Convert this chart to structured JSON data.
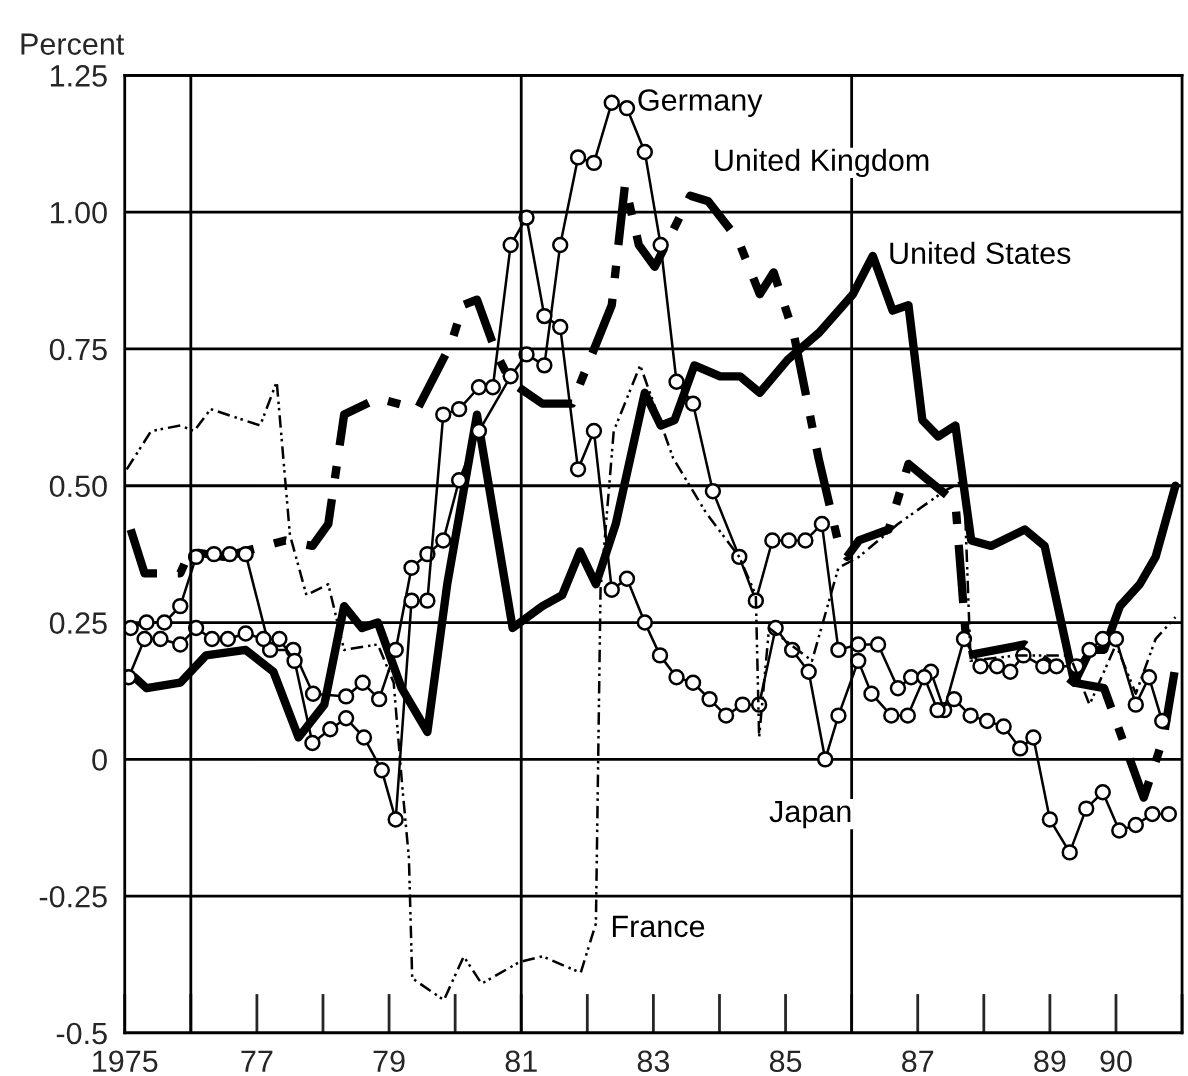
{
  "chart_data": {
    "type": "line",
    "ylabel": "Percent",
    "xlim": [
      1975,
      1991
    ],
    "ylim": [
      -0.5,
      1.25
    ],
    "xticks": [
      1975,
      {
        "value": 1976,
        "label": null
      },
      {
        "value": 1977,
        "label": "77"
      },
      {
        "value": 1979,
        "label": "79"
      },
      {
        "value": 1981,
        "label": "81"
      },
      {
        "value": 1983,
        "label": "83"
      },
      {
        "value": 1985,
        "label": "85"
      },
      {
        "value": 1986,
        "label": null
      },
      {
        "value": 1987,
        "label": "87"
      },
      {
        "value": 1989,
        "label": "89"
      },
      {
        "value": 1990,
        "label": "90"
      }
    ],
    "yticks": [
      -0.5,
      -0.25,
      0,
      0.25,
      {
        "value": 0.5,
        "label": "0.50"
      },
      0.75,
      {
        "value": 1.0,
        "label": "1.00"
      },
      1.25
    ],
    "grid": "y",
    "ref_lines": [
      {
        "axis": "x",
        "value": 1976,
        "color": "#000000"
      },
      {
        "axis": "x",
        "value": 1981,
        "color": "#000000"
      },
      {
        "axis": "x",
        "value": 1986,
        "color": "#000000"
      }
    ],
    "series": [
      {
        "name": "United States",
        "color": "#000000",
        "line_style": "solid",
        "marker": "none",
        "x": [
          1975.15,
          1975.33,
          1975.84,
          1976.23,
          1976.83,
          1977.25,
          1977.63,
          1978.02,
          1978.32,
          1978.59,
          1978.83,
          1979.19,
          1979.58,
          1979.88,
          1980.33,
          1980.87,
          1981.32,
          1981.62,
          1981.89,
          1982.13,
          1982.43,
          1982.87,
          1983.11,
          1983.32,
          1983.62,
          1984.01,
          1984.31,
          1984.61,
          1985.03,
          1985.51,
          1986.02,
          1986.32,
          1986.62,
          1986.86,
          1987.07,
          1987.31,
          1987.57,
          1987.81,
          1988.11,
          1988.62,
          1988.92,
          1989.37,
          1989.61,
          1989.82,
          1990.06,
          1990.36,
          1990.6,
          1990.9
        ],
        "values": [
          0.15,
          0.13,
          0.14,
          0.19,
          0.2,
          0.16,
          0.04,
          0.1,
          0.28,
          0.24,
          0.25,
          0.13,
          0.05,
          0.32,
          0.63,
          0.24,
          0.28,
          0.3,
          0.38,
          0.32,
          0.43,
          0.67,
          0.61,
          0.62,
          0.72,
          0.7,
          0.7,
          0.67,
          0.73,
          0.78,
          0.85,
          0.92,
          0.82,
          0.83,
          0.62,
          0.59,
          0.61,
          0.4,
          0.39,
          0.42,
          0.39,
          0.14,
          0.2,
          0.2,
          0.28,
          0.32,
          0.37,
          0.5
        ]
      },
      {
        "name": "United Kingdom",
        "color": "#000000",
        "line_style": "dashed",
        "marker": "none",
        "x": [
          1975.09,
          1975.3,
          1975.84,
          1975.99,
          1976.5,
          1977.43,
          1977.84,
          1978.08,
          1978.32,
          1978.83,
          1979.43,
          1979.94,
          1980.12,
          1980.33,
          1980.63,
          1980.84,
          1981.32,
          1981.77,
          1982.37,
          1982.57,
          1982.78,
          1983.02,
          1983.56,
          1983.83,
          1984.28,
          1984.61,
          1984.82,
          1985.12,
          1985.5,
          1985.81,
          1985.93,
          1986.11,
          1986.56,
          1986.86,
          1987.16,
          1987.57,
          1987.75,
          1988.62,
          1989.37,
          1989.82,
          1990.42,
          1990.72,
          1990.9
        ],
        "values": [
          0.42,
          0.34,
          0.34,
          0.38,
          0.37,
          0.4,
          0.39,
          0.43,
          0.63,
          0.66,
          0.64,
          0.76,
          0.83,
          0.84,
          0.74,
          0.69,
          0.65,
          0.65,
          0.83,
          1.05,
          0.94,
          0.9,
          1.03,
          1.02,
          0.95,
          0.85,
          0.89,
          0.78,
          0.55,
          0.39,
          0.37,
          0.4,
          0.42,
          0.54,
          0.51,
          0.47,
          0.19,
          0.21,
          0.14,
          0.13,
          -0.07,
          0.04,
          0.17
        ]
      },
      {
        "name": "Germany",
        "color": "#000000",
        "line_style": "solid",
        "marker": "circle",
        "x": [
          1975.09,
          1975.33,
          1975.6,
          1975.84,
          1976.08,
          1976.35,
          1976.59,
          1976.83,
          1977.2,
          1977.55,
          1977.85,
          1978.35,
          1978.6,
          1978.85,
          1979.1,
          1979.34,
          1979.58,
          1979.82,
          1980.06,
          1980.36,
          1980.84,
          1981.08,
          1981.35,
          1981.59,
          1981.86,
          1982.1,
          1982.37,
          1982.6,
          1982.87,
          1983.11,
          1983.35,
          1983.6,
          1983.9,
          1984.3,
          1984.55,
          1984.8,
          1985.05,
          1985.3,
          1985.55,
          1985.8,
          1986.1,
          1986.4,
          1986.7,
          1986.9,
          1987.2,
          1987.4,
          1987.7,
          1987.95,
          1988.2,
          1988.4,
          1988.6,
          1988.9,
          1989.1,
          1989.4,
          1989.6,
          1989.8,
          1990.0,
          1990.3,
          1990.5,
          1990.7
        ],
        "values": [
          0.24,
          0.25,
          0.25,
          0.28,
          0.37,
          0.375,
          0.375,
          0.375,
          0.2,
          0.2,
          0.12,
          0.115,
          0.14,
          0.11,
          0.2,
          0.35,
          0.375,
          0.4,
          0.51,
          0.6,
          0.7,
          0.74,
          0.72,
          0.94,
          1.1,
          1.09,
          1.2,
          1.19,
          1.11,
          0.94,
          0.69,
          0.65,
          0.49,
          0.37,
          0.29,
          0.4,
          0.4,
          0.4,
          0.43,
          0.2,
          0.21,
          0.21,
          0.13,
          0.15,
          0.16,
          0.09,
          0.22,
          0.17,
          0.17,
          0.16,
          0.19,
          0.17,
          0.17,
          0.17,
          0.2,
          0.22,
          0.22,
          0.1,
          0.15,
          0.07
        ]
      },
      {
        "name": "Japan",
        "color": "#000000",
        "line_style": "solid",
        "marker": "circle",
        "x": [
          1975.06,
          1975.3,
          1975.54,
          1975.84,
          1976.08,
          1976.32,
          1976.56,
          1976.83,
          1977.1,
          1977.34,
          1977.57,
          1977.84,
          1978.11,
          1978.35,
          1978.62,
          1978.89,
          1979.1,
          1979.34,
          1979.58,
          1979.82,
          1980.06,
          1980.36,
          1980.57,
          1980.84,
          1981.08,
          1981.35,
          1981.59,
          1981.86,
          1982.1,
          1982.37,
          1982.6,
          1982.87,
          1983.1,
          1983.35,
          1983.6,
          1983.85,
          1984.1,
          1984.35,
          1984.6,
          1984.85,
          1985.1,
          1985.35,
          1985.6,
          1985.8,
          1986.1,
          1986.3,
          1986.6,
          1986.85,
          1987.1,
          1987.3,
          1987.55,
          1987.8,
          1988.05,
          1988.3,
          1988.55,
          1988.75,
          1989.0,
          1989.3,
          1989.55,
          1989.8,
          1990.05,
          1990.3,
          1990.55,
          1990.8
        ],
        "values": [
          0.15,
          0.22,
          0.22,
          0.21,
          0.24,
          0.22,
          0.22,
          0.23,
          0.22,
          0.22,
          0.18,
          0.03,
          0.055,
          0.075,
          0.04,
          -0.02,
          -0.11,
          0.29,
          0.29,
          0.63,
          0.64,
          0.68,
          0.68,
          0.94,
          0.99,
          0.81,
          0.79,
          0.53,
          0.6,
          0.31,
          0.33,
          0.25,
          0.19,
          0.15,
          0.14,
          0.11,
          0.08,
          0.1,
          0.1,
          0.24,
          0.2,
          0.16,
          0.0,
          0.08,
          0.18,
          0.12,
          0.08,
          0.08,
          0.15,
          0.09,
          0.11,
          0.08,
          0.07,
          0.06,
          0.02,
          0.04,
          -0.11,
          -0.17,
          -0.09,
          -0.06,
          -0.13,
          -0.12,
          -0.1,
          -0.1
        ]
      },
      {
        "name": "France",
        "color": "#000000",
        "line_style": "dotted",
        "marker": "none",
        "x": [
          1975.03,
          1975.4,
          1975.84,
          1976.05,
          1976.3,
          1977.05,
          1977.3,
          1977.5,
          1977.75,
          1978.08,
          1978.32,
          1978.83,
          1979.07,
          1979.2,
          1979.3,
          1979.35,
          1979.83,
          1980.13,
          1980.4,
          1980.98,
          1981.32,
          1981.9,
          1982.13,
          1982.2,
          1982.4,
          1982.8,
          1983.3,
          1983.8,
          1984.3,
          1984.55,
          1984.6,
          1984.75,
          1985.4,
          1985.8,
          1986.11,
          1986.7,
          1987.4,
          1987.7,
          1987.8,
          1988.5,
          1989.3,
          1989.6,
          1990.0,
          1990.3,
          1990.6,
          1990.9
        ],
        "values": [
          0.53,
          0.6,
          0.61,
          0.6,
          0.64,
          0.61,
          0.69,
          0.41,
          0.3,
          0.32,
          0.2,
          0.21,
          0.14,
          -0.05,
          -0.18,
          -0.4,
          -0.44,
          -0.36,
          -0.41,
          -0.37,
          -0.36,
          -0.39,
          -0.3,
          0.31,
          0.6,
          0.72,
          0.55,
          0.45,
          0.37,
          0.3,
          0.04,
          0.24,
          0.18,
          0.35,
          0.37,
          0.43,
          0.49,
          0.51,
          0.18,
          0.19,
          0.19,
          0.1,
          0.21,
          0.12,
          0.22,
          0.26
        ]
      }
    ]
  }
}
